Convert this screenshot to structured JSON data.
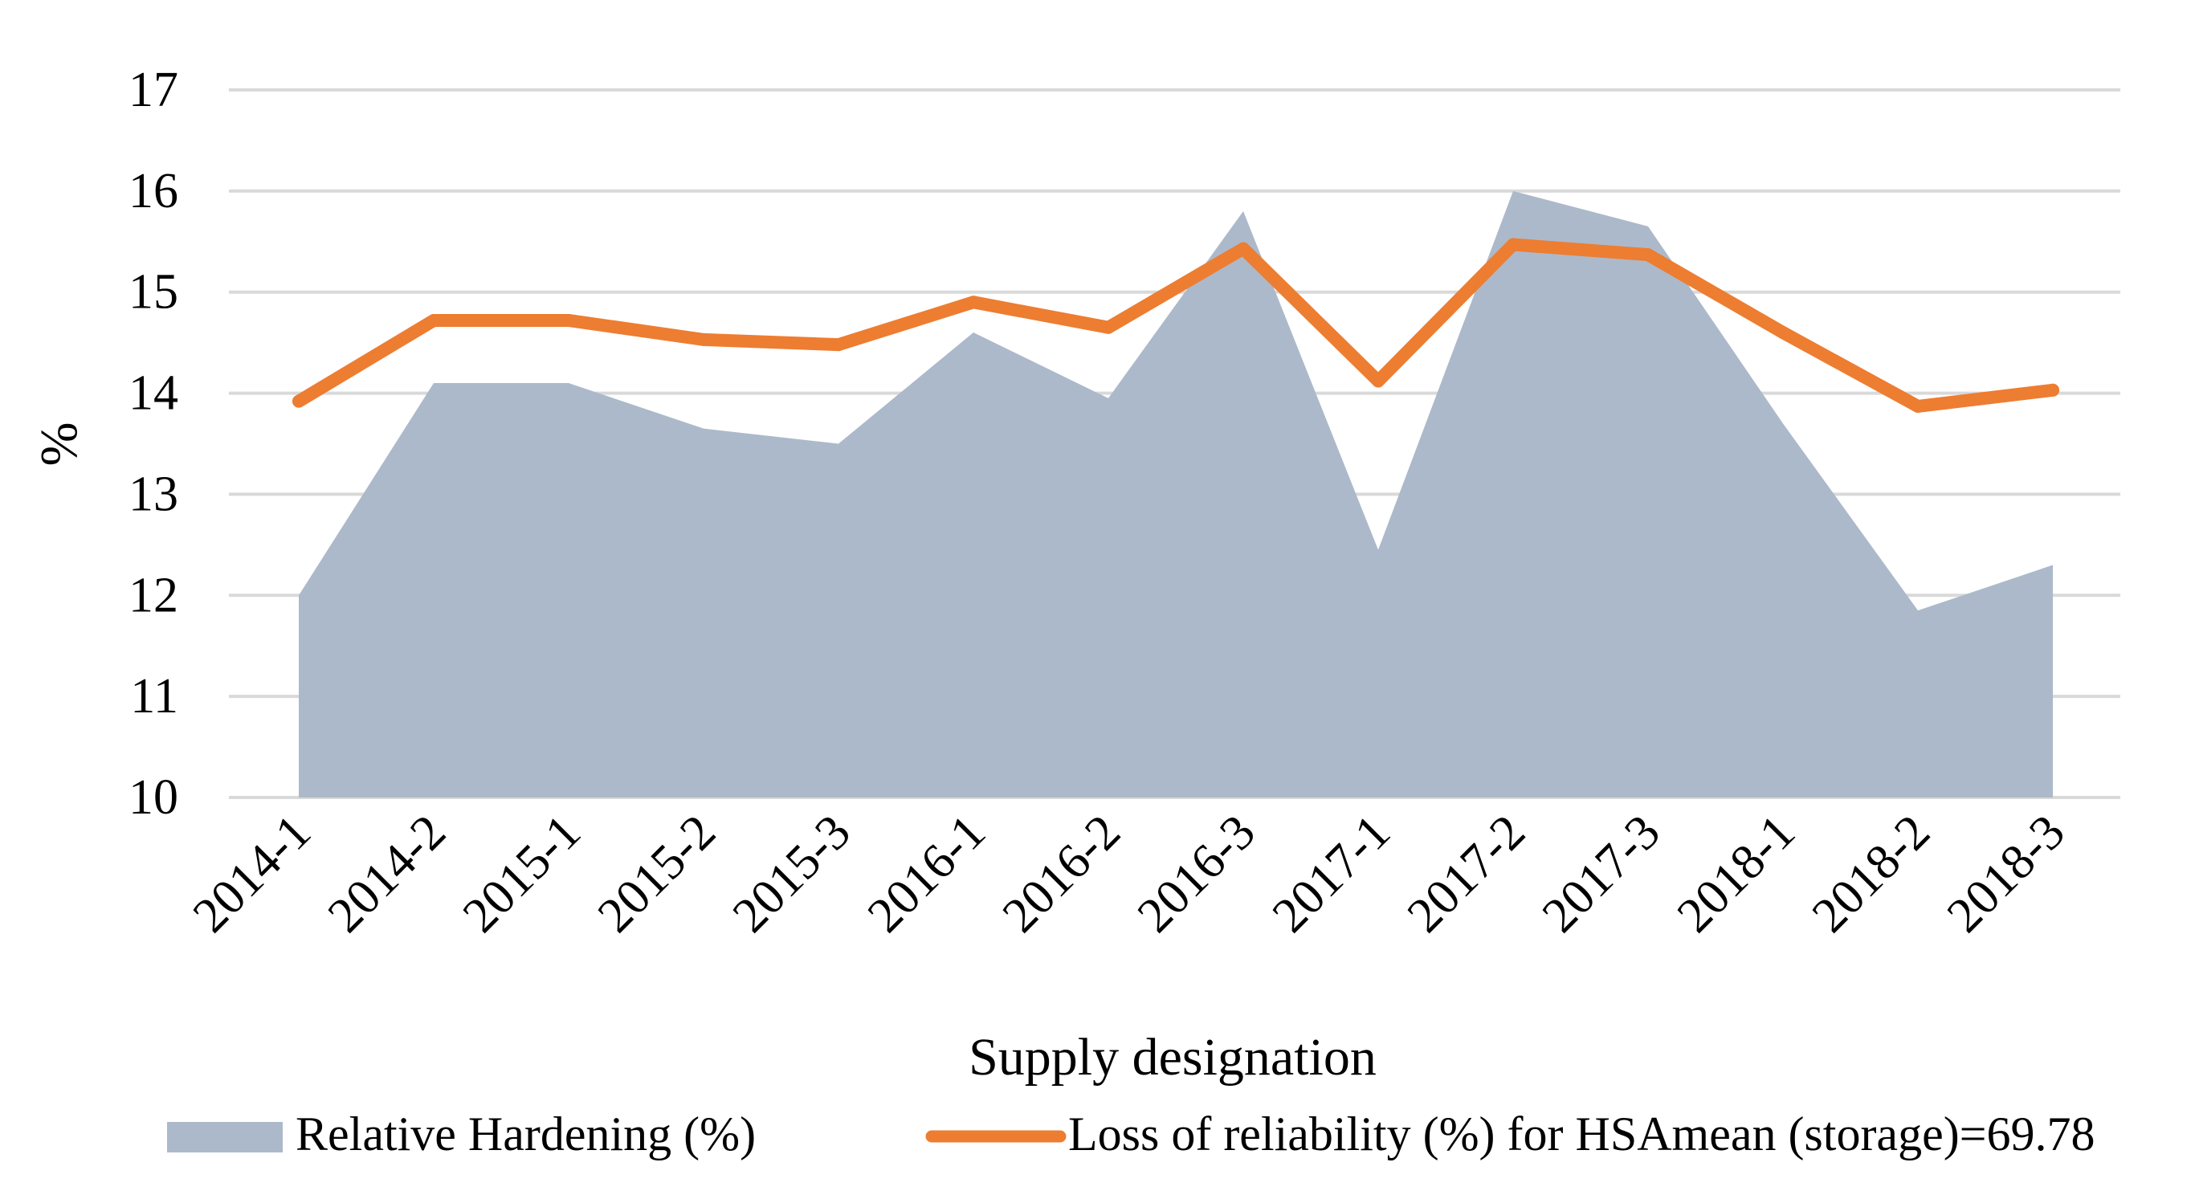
{
  "chart_data": {
    "type": "area",
    "title": "",
    "xlabel": "Supply designation",
    "ylabel": "%",
    "ylim": [
      10,
      17
    ],
    "yticks": [
      10,
      11,
      12,
      13,
      14,
      15,
      16,
      17
    ],
    "grid": true,
    "legend_position": "bottom",
    "categories": [
      "2014-1",
      "2014-2",
      "2015-1",
      "2015-2",
      "2015-3",
      "2016-1",
      "2016-2",
      "2016-3",
      "2017-1",
      "2017-2",
      "2017-3",
      "2018-1",
      "2018-2",
      "2018-3"
    ],
    "series": [
      {
        "name": "Relative Hardening  (%)",
        "type": "area",
        "color": "#acb9ca",
        "values": [
          12.0,
          14.1,
          14.1,
          13.65,
          13.5,
          14.6,
          13.95,
          15.8,
          12.45,
          16.0,
          15.65,
          13.7,
          11.85,
          12.3
        ]
      },
      {
        "name": "Loss of reliability (%) for HSAmean (storage)=69.78",
        "type": "line",
        "color": "#ed7d31",
        "values": [
          13.92,
          14.72,
          14.72,
          14.53,
          14.48,
          14.9,
          14.65,
          15.43,
          14.12,
          15.47,
          15.37,
          14.6,
          13.87,
          14.03
        ]
      }
    ]
  }
}
